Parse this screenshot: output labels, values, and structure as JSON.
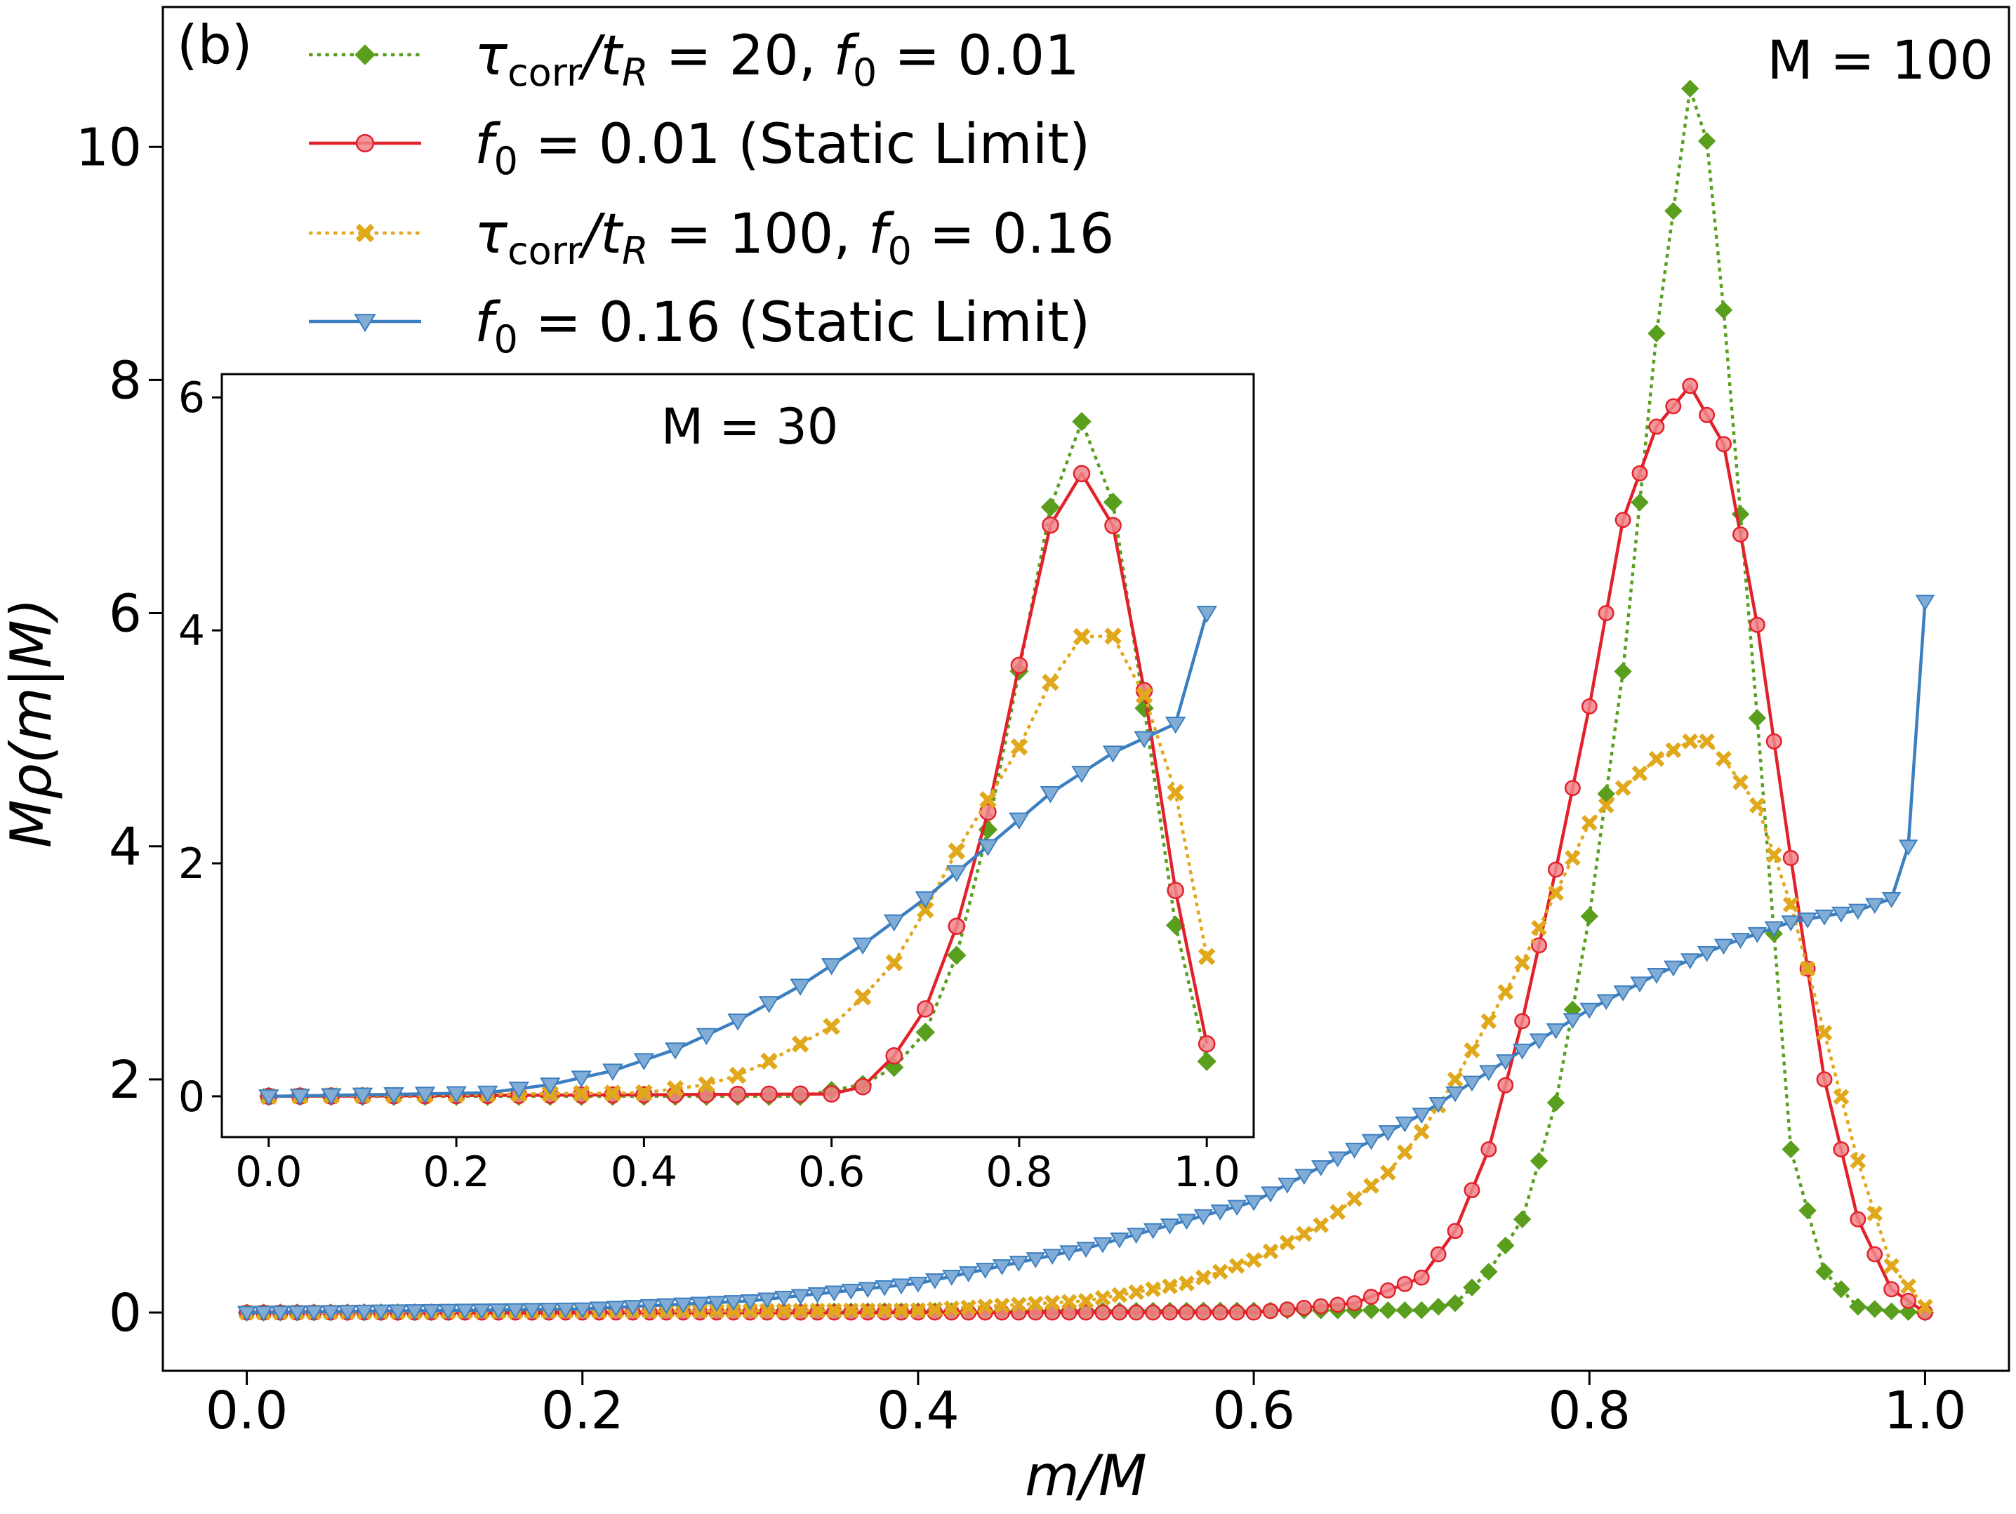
{
  "chart_data": [
    {
      "type": "line",
      "panel_label": "(b)",
      "annotation": "M = 100",
      "xlabel": "m/M",
      "ylabel": "Mρ(m|M)",
      "xlim": [
        -0.05,
        1.05
      ],
      "ylim": [
        -0.5,
        11.2
      ],
      "xticks": [
        0.0,
        0.2,
        0.4,
        0.6,
        0.8,
        1.0
      ],
      "xtick_labels": [
        "0.0",
        "0.2",
        "0.4",
        "0.6",
        "0.8",
        "1.0"
      ],
      "yticks": [
        0,
        2,
        4,
        6,
        8,
        10
      ],
      "ytick_labels": [
        "0",
        "2",
        "4",
        "6",
        "8",
        "10"
      ],
      "grid": false,
      "legend_position": "top-left",
      "series": [
        {
          "key": "s1",
          "name": "τcorr/tR = 20, f0 = 0.01",
          "legend_parts": [
            "τ",
            "corr",
            "/t",
            "R",
            " = 20, ",
            "f",
            "0",
            " = 0.01"
          ],
          "color": "#5a9e1e",
          "line_style": "dotted",
          "marker": "diamond",
          "x": [
            0.0,
            0.7,
            0.72,
            0.74,
            0.76,
            0.78,
            0.8,
            0.82,
            0.84,
            0.86,
            0.87,
            0.88,
            0.9,
            0.92,
            0.94,
            0.96,
            0.98,
            1.0
          ],
          "y": [
            0.0,
            0.02,
            0.08,
            0.35,
            0.8,
            1.8,
            3.4,
            5.5,
            8.4,
            10.5,
            10.05,
            8.6,
            5.1,
            1.4,
            0.35,
            0.05,
            0.01,
            0.0
          ]
        },
        {
          "key": "s2",
          "name": "f0 = 0.01 (Static Limit)",
          "legend_parts": [
            "",
            "",
            "",
            "",
            "",
            "f",
            "0",
            " = 0.01 (Static Limit)"
          ],
          "color": "#e3212b",
          "line_style": "solid",
          "marker": "circle",
          "x": [
            0.0,
            0.6,
            0.66,
            0.7,
            0.72,
            0.74,
            0.76,
            0.78,
            0.8,
            0.82,
            0.84,
            0.86,
            0.88,
            0.9,
            0.92,
            0.94,
            0.96,
            0.98,
            1.0
          ],
          "y": [
            0.0,
            0.0,
            0.08,
            0.3,
            0.7,
            1.4,
            2.5,
            3.8,
            5.2,
            6.8,
            7.6,
            7.95,
            7.45,
            5.9,
            3.9,
            2.0,
            0.8,
            0.2,
            0.0
          ]
        },
        {
          "key": "s3",
          "name": "τcorr/tR = 100, f0 = 0.16",
          "legend_parts": [
            "τ",
            "corr",
            "/t",
            "R",
            " = 100, ",
            "f",
            "0",
            " = 0.16"
          ],
          "color": "#e0a81a",
          "line_style": "dotted",
          "marker": "x",
          "x": [
            0.0,
            0.4,
            0.5,
            0.56,
            0.6,
            0.64,
            0.68,
            0.7,
            0.72,
            0.74,
            0.76,
            0.78,
            0.8,
            0.82,
            0.84,
            0.86,
            0.87,
            0.88,
            0.9,
            0.92,
            0.94,
            0.96,
            0.98,
            1.0
          ],
          "y": [
            0.0,
            0.02,
            0.1,
            0.25,
            0.45,
            0.75,
            1.2,
            1.55,
            2.0,
            2.5,
            3.0,
            3.6,
            4.2,
            4.5,
            4.75,
            4.9,
            4.9,
            4.75,
            4.35,
            3.5,
            2.4,
            1.3,
            0.4,
            0.05
          ]
        },
        {
          "key": "s4",
          "name": "f0 = 0.16 (Static Limit)",
          "legend_parts": [
            "",
            "",
            "",
            "",
            "",
            "f",
            "0",
            " = 0.16 (Static Limit)"
          ],
          "color": "#3c7fc0",
          "line_style": "solid",
          "marker": "triangle-down",
          "x": [
            0.0,
            0.2,
            0.3,
            0.4,
            0.5,
            0.6,
            0.7,
            0.76,
            0.8,
            0.84,
            0.88,
            0.9,
            0.92,
            0.94,
            0.96,
            0.98,
            0.99,
            1.0
          ],
          "y": [
            0.0,
            0.03,
            0.1,
            0.25,
            0.55,
            0.95,
            1.7,
            2.25,
            2.6,
            2.9,
            3.15,
            3.25,
            3.35,
            3.4,
            3.45,
            3.55,
            4.0,
            6.1
          ]
        }
      ]
    },
    {
      "type": "line",
      "role": "inset",
      "annotation": "M = 30",
      "xlim": [
        -0.05,
        1.05
      ],
      "ylim": [
        -0.35,
        6.2
      ],
      "xticks": [
        0.0,
        0.2,
        0.4,
        0.6,
        0.8,
        1.0
      ],
      "xtick_labels": [
        "0.0",
        "0.2",
        "0.4",
        "0.6",
        "0.8",
        "1.0"
      ],
      "yticks": [
        0,
        2,
        4,
        6
      ],
      "ytick_labels": [
        "0",
        "2",
        "4",
        "6"
      ],
      "series": [
        {
          "key": "s1",
          "x": [
            0.0,
            0.567,
            0.633,
            0.667,
            0.7,
            0.733,
            0.767,
            0.8,
            0.833,
            0.867,
            0.9,
            0.933,
            0.967,
            1.0
          ],
          "y": [
            0.0,
            0.0,
            0.1,
            0.25,
            0.55,
            1.2,
            2.3,
            3.65,
            5.05,
            5.8,
            5.1,
            3.35,
            1.45,
            0.3
          ],
          "color": "#5a9e1e",
          "line_style": "dotted",
          "marker": "diamond"
        },
        {
          "key": "s2",
          "x": [
            0.0,
            0.6,
            0.633,
            0.667,
            0.7,
            0.733,
            0.767,
            0.8,
            0.833,
            0.867,
            0.9,
            0.933,
            0.967,
            1.0
          ],
          "y": [
            0.0,
            0.02,
            0.08,
            0.35,
            0.75,
            1.45,
            2.45,
            3.7,
            4.9,
            5.35,
            4.9,
            3.5,
            1.75,
            0.45
          ],
          "color": "#e3212b",
          "line_style": "solid",
          "marker": "circle"
        },
        {
          "key": "s3",
          "x": [
            0.0,
            0.4,
            0.467,
            0.5,
            0.533,
            0.567,
            0.6,
            0.633,
            0.667,
            0.7,
            0.733,
            0.767,
            0.8,
            0.833,
            0.867,
            0.9,
            0.933,
            0.967,
            1.0
          ],
          "y": [
            0.0,
            0.03,
            0.1,
            0.18,
            0.3,
            0.45,
            0.6,
            0.85,
            1.15,
            1.6,
            2.1,
            2.55,
            3.0,
            3.55,
            3.95,
            3.95,
            3.45,
            2.6,
            1.2
          ],
          "color": "#e0a81a",
          "line_style": "dotted",
          "marker": "x"
        },
        {
          "key": "s4",
          "x": [
            0.0,
            0.233,
            0.3,
            0.367,
            0.433,
            0.5,
            0.567,
            0.633,
            0.7,
            0.767,
            0.833,
            0.9,
            0.967,
            1.0
          ],
          "y": [
            0.0,
            0.03,
            0.1,
            0.22,
            0.4,
            0.65,
            0.95,
            1.3,
            1.7,
            2.15,
            2.6,
            2.95,
            3.2,
            4.15
          ],
          "color": "#3c7fc0",
          "line_style": "solid",
          "marker": "triangle-down"
        }
      ]
    }
  ]
}
